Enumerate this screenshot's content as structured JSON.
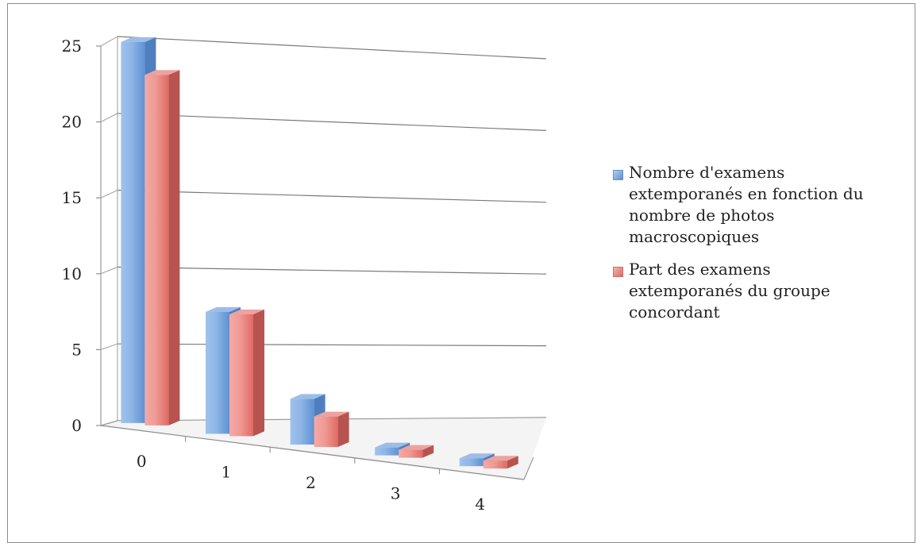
{
  "chart_data": {
    "type": "bar",
    "categories": [
      "0",
      "1",
      "2",
      "3",
      "4"
    ],
    "series": [
      {
        "name": "Nombre d'examens extemporanés en fonction du nombre de photos macroscopiques",
        "values": [
          25,
          8,
          3,
          0,
          0
        ],
        "color": "#6f9edb"
      },
      {
        "name": "Part des examens extemporanés du groupe concordant",
        "values": [
          23,
          8,
          2,
          0,
          0
        ],
        "color": "#e8837e"
      }
    ],
    "yticks": [
      "0",
      "5",
      "10",
      "15",
      "20",
      "25"
    ],
    "ylim": [
      0,
      25
    ],
    "grid": true,
    "legend_position": "right",
    "style": "3d-clustered-column"
  }
}
